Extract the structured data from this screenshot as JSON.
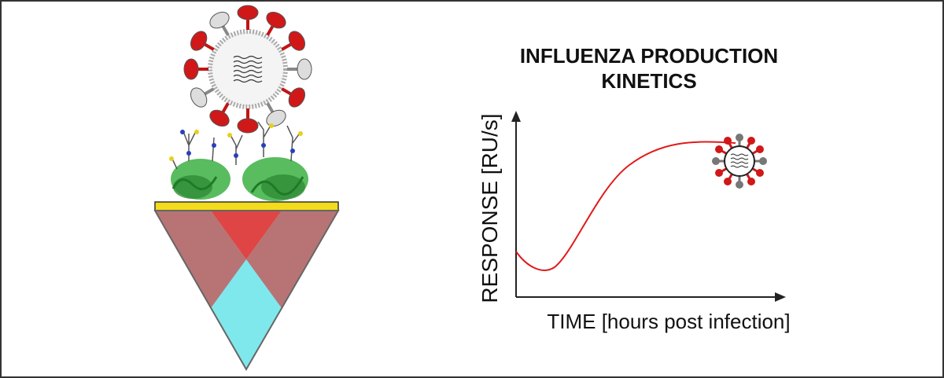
{
  "title": {
    "lines": [
      "INFLUENZA PRODUCTION",
      "KINETICS"
    ]
  },
  "plot": {
    "y_axis_label": "RESPONSE [RU/s]",
    "x_axis_label": "TIME [hours post infection]"
  }
}
